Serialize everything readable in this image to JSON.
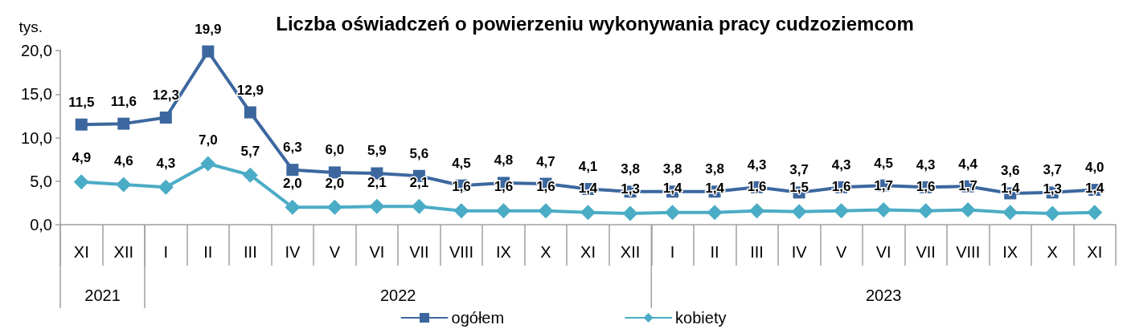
{
  "chart_data": {
    "type": "line",
    "title": "Liczba oświadczeń o powierzeniu wykonywania pracy cudzoziemcom",
    "ylabel": "tys.",
    "categories": [
      "XI",
      "XII",
      "I",
      "II",
      "III",
      "IV",
      "V",
      "VI",
      "VII",
      "VIII",
      "IX",
      "X",
      "XI",
      "XII",
      "I",
      "II",
      "III",
      "IV",
      "V",
      "VI",
      "VII",
      "VIII",
      "IX",
      "X",
      "XI"
    ],
    "series": [
      {
        "name": "ogółem",
        "color": "#3c679e",
        "marker": "square",
        "values": [
          11.5,
          11.6,
          12.3,
          19.9,
          12.9,
          6.3,
          6.0,
          5.9,
          5.6,
          4.5,
          4.8,
          4.7,
          4.1,
          3.8,
          3.8,
          3.8,
          4.3,
          3.7,
          4.3,
          4.5,
          4.3,
          4.4,
          3.6,
          3.7,
          4.0
        ],
        "value_labels": [
          "11,5",
          "11,6",
          "12,3",
          "19,9",
          "12,9",
          "6,3",
          "6,0",
          "5,9",
          "5,6",
          "4,5",
          "4,8",
          "4,7",
          "4,1",
          "3,8",
          "3,8",
          "3,8",
          "4,3",
          "3,7",
          "4,3",
          "4,5",
          "4,3",
          "4,4",
          "3,6",
          "3,7",
          "4,0"
        ]
      },
      {
        "name": "kobiety",
        "color": "#4bacc6",
        "marker": "diamond",
        "values": [
          4.9,
          4.6,
          4.3,
          7.0,
          5.7,
          2.0,
          2.0,
          2.1,
          2.1,
          1.6,
          1.6,
          1.6,
          1.4,
          1.3,
          1.4,
          1.4,
          1.6,
          1.5,
          1.6,
          1.7,
          1.6,
          1.7,
          1.4,
          1.3,
          1.4
        ],
        "value_labels": [
          "4,9",
          "4,6",
          "4,3",
          "7,0",
          "5,7",
          "2,0",
          "2,0",
          "2,1",
          "2,1",
          "1,6",
          "1,6",
          "1,6",
          "1,4",
          "1,3",
          "1,4",
          "1,4",
          "1,6",
          "1,5",
          "1,6",
          "1,7",
          "1,6",
          "1,7",
          "1,4",
          "1,3",
          "1,4"
        ]
      }
    ],
    "ylim": [
      0,
      20
    ],
    "yticks": [
      {
        "value": 0,
        "label": "0,0"
      },
      {
        "value": 5,
        "label": "5,0"
      },
      {
        "value": 10,
        "label": "10,0"
      },
      {
        "value": 15,
        "label": "15,0"
      },
      {
        "value": 20,
        "label": "20,0"
      }
    ],
    "annotations": [
      "2021",
      "2022",
      "2023"
    ],
    "grid": false,
    "legend": "bottom",
    "line_style": "solid"
  }
}
